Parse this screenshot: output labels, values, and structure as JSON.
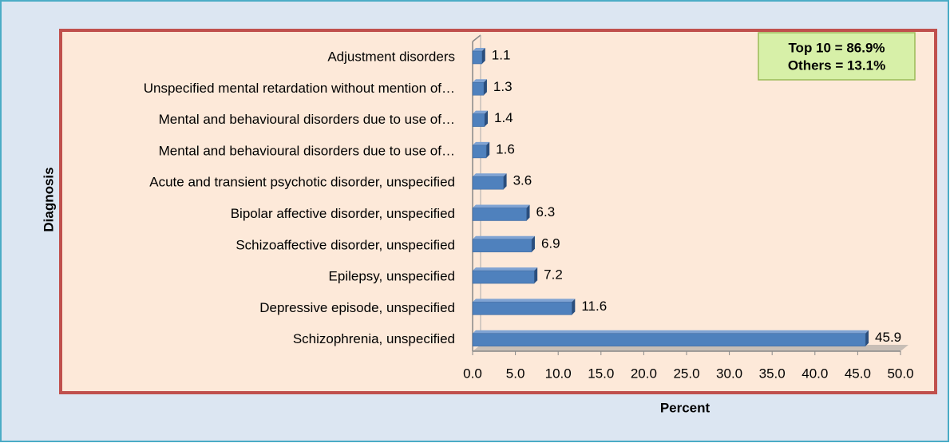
{
  "chart_data": {
    "type": "bar",
    "orientation": "horizontal",
    "categories": [
      "Adjustment disorders",
      "Unspecified mental retardation without mention of…",
      "Mental and behavioural disorders due to use of…",
      "Mental and behavioural disorders due to use of…",
      "Acute and transient psychotic disorder, unspecified",
      "Bipolar affective disorder, unspecified",
      "Schizoaffective disorder, unspecified",
      "Epilepsy, unspecified",
      "Depressive episode, unspecified",
      "Schizophrenia, unspecified"
    ],
    "values": [
      1.1,
      1.3,
      1.4,
      1.6,
      3.6,
      6.3,
      6.9,
      7.2,
      11.6,
      45.9
    ],
    "color": "#4f81bd",
    "xlim": [
      0,
      50
    ],
    "xticks": [
      {
        "value": 0,
        "label": "0.0"
      },
      {
        "value": 5,
        "label": "5.0"
      },
      {
        "value": 10,
        "label": "10.0"
      },
      {
        "value": 15,
        "label": "15.0"
      },
      {
        "value": 20,
        "label": "20.0"
      },
      {
        "value": 25,
        "label": "25.0"
      },
      {
        "value": 30,
        "label": "30.0"
      },
      {
        "value": 35,
        "label": "35.0"
      },
      {
        "value": 40,
        "label": "40.0"
      },
      {
        "value": 45,
        "label": "45.0"
      },
      {
        "value": 50,
        "label": "50.0"
      }
    ],
    "xlabel": "Percent",
    "ylabel": "Diagnosis",
    "annotation": [
      "Top 10 = 86.9%",
      "Others = 13.1%"
    ]
  }
}
